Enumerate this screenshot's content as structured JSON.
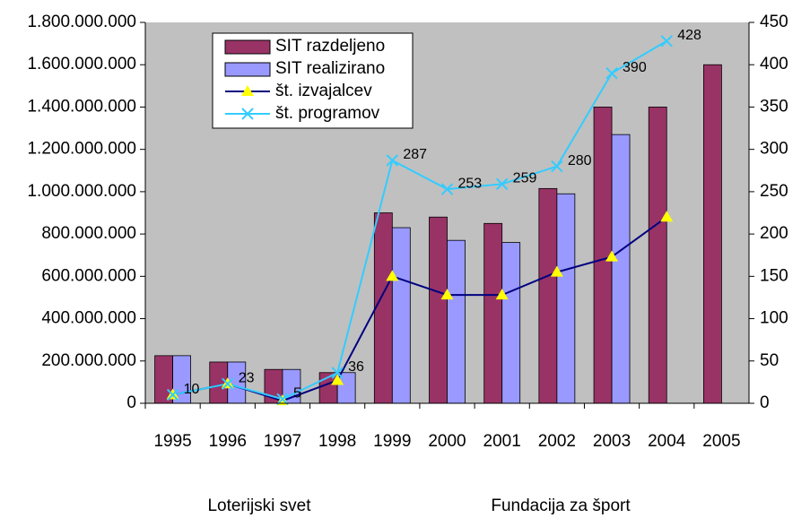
{
  "chart_data": {
    "type": "bar_line",
    "categories": [
      "1995",
      "1996",
      "1997",
      "1998",
      "1999",
      "2000",
      "2001",
      "2002",
      "2003",
      "2004",
      "2005"
    ],
    "series": [
      {
        "name": "SIT razdeljeno",
        "type": "bar",
        "color": "#993366",
        "values": [
          225000000,
          195000000,
          160000000,
          145000000,
          900000000,
          880000000,
          850000000,
          1015000000,
          1400000000,
          1400000000,
          1600000000
        ]
      },
      {
        "name": "SIT realizirano",
        "type": "bar",
        "color": "#9999ff",
        "values": [
          225000000,
          195000000,
          160000000,
          145000000,
          830000000,
          770000000,
          760000000,
          990000000,
          1270000000,
          null,
          null
        ]
      },
      {
        "name": "št. izvajalcev",
        "type": "line",
        "axis": "y2",
        "color": "#000080",
        "marker": "triangle",
        "marker_color": "#ffff00",
        "values": [
          10,
          23,
          3,
          27,
          150,
          128,
          128,
          155,
          173,
          220,
          null
        ]
      },
      {
        "name": "št. programov",
        "type": "line",
        "axis": "y2",
        "color": "#33ccff",
        "marker": "x",
        "marker_color": "#33ccff",
        "show_values": true,
        "values": [
          10,
          23,
          5,
          36,
          287,
          253,
          259,
          280,
          390,
          428,
          null
        ]
      }
    ],
    "ylim": [
      0,
      1800000000
    ],
    "yticks": [
      0,
      {
        "value": 200000000,
        "label": "200.000.000"
      },
      {
        "value": 400000000,
        "label": "400.000.000"
      },
      {
        "value": 600000000,
        "label": "600.000.000"
      },
      {
        "value": 800000000,
        "label": "800.000.000"
      },
      {
        "value": 1000000000,
        "label": "1.000.000.000"
      },
      {
        "value": 1200000000,
        "label": "1.200.000.000"
      },
      {
        "value": 1400000000,
        "label": "1.400.000.000"
      },
      {
        "value": 1600000000,
        "label": "1.600.000.000"
      },
      {
        "value": 1800000000,
        "label": "1.800.000.000"
      }
    ],
    "y2lim": [
      0,
      450
    ],
    "y2ticks": [
      0,
      50,
      100,
      150,
      200,
      250,
      300,
      350,
      400,
      450
    ],
    "plot_background": "#c0c0c0",
    "legend": "top-left",
    "annotations": [
      "Loterijski svet",
      "Fundacija za šport"
    ]
  }
}
